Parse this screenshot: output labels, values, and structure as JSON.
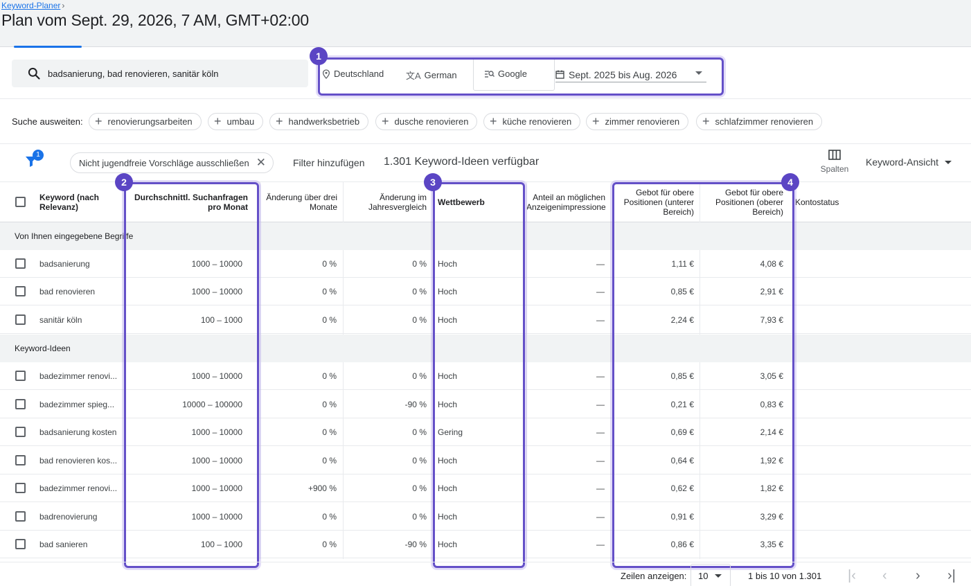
{
  "header": {
    "breadcrumb": "Keyword-Planer",
    "title": "Plan vom Sept. 29, 2026, 7 AM, GMT+02:00"
  },
  "search": {
    "query": "badsanierung, bad renovieren, sanitär köln",
    "location": "Deutschland",
    "language": "German",
    "network": "Google",
    "date_range": "Sept. 2025 bis Aug. 2026"
  },
  "expand": {
    "label": "Suche ausweiten:",
    "chips": [
      "renovierungsarbeiten",
      "umbau",
      "handwerksbetrieb",
      "dusche renovieren",
      "küche renovieren",
      "zimmer renovieren",
      "schlafzimmer renovieren"
    ]
  },
  "filters": {
    "badge": "1",
    "active_filter": "Nicht jugendfreie Vorschläge ausschließen",
    "add_filter": "Filter hinzufügen",
    "ideas_count": "1.301 Keyword-Ideen verfügbar",
    "columns_label": "Spalten",
    "view_label": "Keyword-Ansicht"
  },
  "table": {
    "headers": {
      "keyword": "Keyword (nach Relevanz)",
      "searches": "Durchschnittl. Suchanfragen pro Monat",
      "change3m": "Änderung über drei Monate",
      "changeyoy": "Änderung im Jahresvergleich",
      "competition": "Wettbewerb",
      "impression_share": "Anteil an möglichen Anzeigenimpressionen",
      "bid_low": "Gebot für obere Positionen (unterer Bereich)",
      "bid_high": "Gebot für obere Positionen (oberer Bereich)",
      "account_status": "Kontostatus"
    },
    "group_entered": "Von Ihnen eingegebene Begriffe",
    "group_ideas": "Keyword-Ideen",
    "entered_rows": [
      {
        "keyword": "badsanierung",
        "searches": "1000 – 10000",
        "change3m": "0 %",
        "changeyoy": "0 %",
        "competition": "Hoch",
        "share": "—",
        "bid_low": "1,11 €",
        "bid_high": "4,08 €"
      },
      {
        "keyword": "bad renovieren",
        "searches": "1000 – 10000",
        "change3m": "0 %",
        "changeyoy": "0 %",
        "competition": "Hoch",
        "share": "—",
        "bid_low": "0,85 €",
        "bid_high": "2,91 €"
      },
      {
        "keyword": "sanitär köln",
        "searches": "100 – 1000",
        "change3m": "0 %",
        "changeyoy": "0 %",
        "competition": "Hoch",
        "share": "—",
        "bid_low": "2,24 €",
        "bid_high": "7,93 €"
      }
    ],
    "idea_rows": [
      {
        "keyword": "badezimmer renovi...",
        "searches": "1000 – 10000",
        "change3m": "0 %",
        "changeyoy": "0 %",
        "competition": "Hoch",
        "share": "—",
        "bid_low": "0,85 €",
        "bid_high": "3,05 €"
      },
      {
        "keyword": "badezimmer spieg...",
        "searches": "10000 – 100000",
        "change3m": "0 %",
        "changeyoy": "-90 %",
        "competition": "Hoch",
        "share": "—",
        "bid_low": "0,21 €",
        "bid_high": "0,83 €"
      },
      {
        "keyword": "badsanierung kosten",
        "searches": "1000 – 10000",
        "change3m": "0 %",
        "changeyoy": "0 %",
        "competition": "Gering",
        "share": "—",
        "bid_low": "0,69 €",
        "bid_high": "2,14 €"
      },
      {
        "keyword": "bad renovieren kos...",
        "searches": "1000 – 10000",
        "change3m": "0 %",
        "changeyoy": "0 %",
        "competition": "Hoch",
        "share": "—",
        "bid_low": "0,64 €",
        "bid_high": "1,92 €"
      },
      {
        "keyword": "badezimmer renovi...",
        "searches": "1000 – 10000",
        "change3m": "+900 %",
        "changeyoy": "0 %",
        "competition": "Hoch",
        "share": "—",
        "bid_low": "0,62 €",
        "bid_high": "1,82 €"
      },
      {
        "keyword": "badrenovierung",
        "searches": "1000 – 10000",
        "change3m": "0 %",
        "changeyoy": "0 %",
        "competition": "Hoch",
        "share": "—",
        "bid_low": "0,91 €",
        "bid_high": "3,29 €"
      },
      {
        "keyword": "bad sanieren",
        "searches": "100 – 1000",
        "change3m": "0 %",
        "changeyoy": "-90 %",
        "competition": "Hoch",
        "share": "—",
        "bid_low": "0,86 €",
        "bid_high": "3,35 €"
      }
    ]
  },
  "highlights": [
    "1",
    "2",
    "3",
    "4"
  ],
  "pagination": {
    "rows_label": "Zeilen anzeigen:",
    "rows_value": "10",
    "range": "1 bis 10 von 1.301"
  },
  "colors": {
    "accent": "#1a73e8",
    "highlight": "#6450c8",
    "group_bg": "#f1f3f4"
  }
}
